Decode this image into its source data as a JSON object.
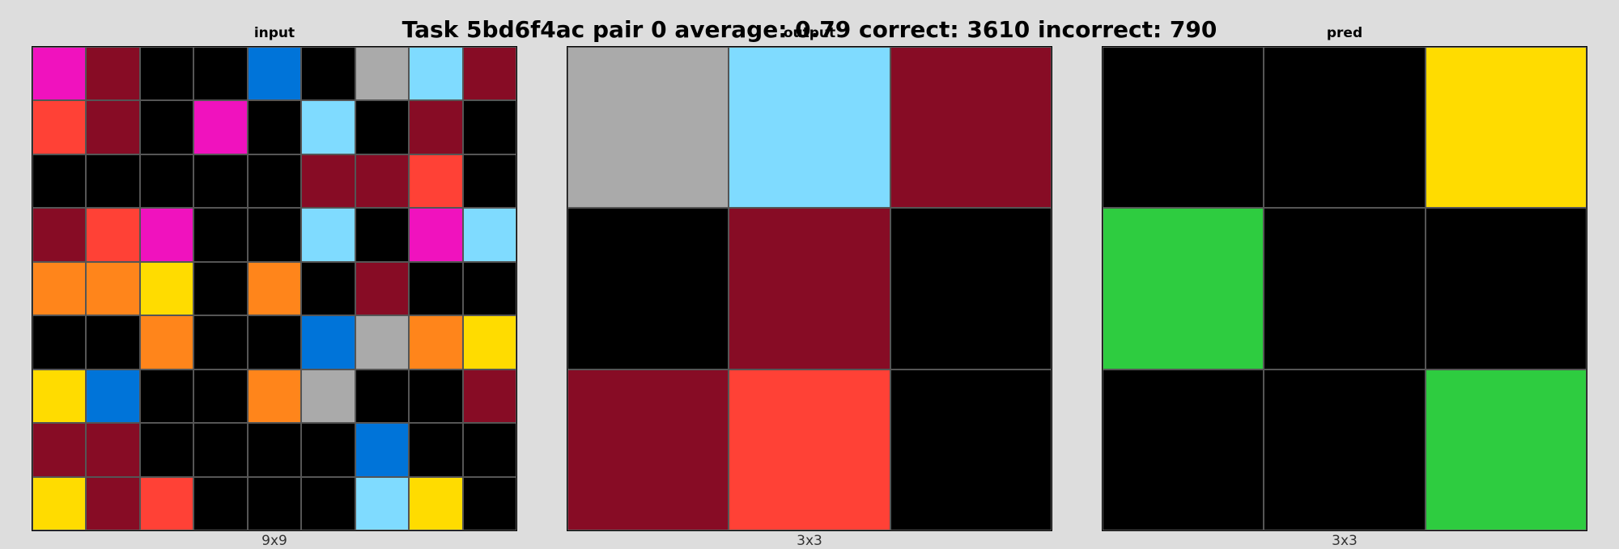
{
  "title": "Task 5bd6f4ac pair 0 average: 0.79 correct: 3610 incorrect: 790",
  "colors": {
    "0": "#000000",
    "1": "#0074d9",
    "2": "#ff4136",
    "3": "#2ecc40",
    "4": "#ffdc00",
    "5": "#aaaaaa",
    "6": "#f012be",
    "7": "#ff851b",
    "8": "#7fdbff",
    "9": "#870c25"
  },
  "panels": [
    {
      "label": "input",
      "size_label": "9x9",
      "rows": 9,
      "cols": 9,
      "grid": [
        [
          6,
          9,
          0,
          0,
          1,
          0,
          5,
          8,
          9
        ],
        [
          2,
          9,
          0,
          6,
          0,
          8,
          0,
          9,
          0
        ],
        [
          0,
          0,
          0,
          0,
          0,
          9,
          9,
          2,
          0
        ],
        [
          9,
          2,
          6,
          0,
          0,
          8,
          0,
          6,
          8
        ],
        [
          7,
          7,
          4,
          0,
          7,
          0,
          9,
          0,
          0
        ],
        [
          0,
          0,
          7,
          0,
          0,
          1,
          5,
          7,
          4
        ],
        [
          4,
          1,
          0,
          0,
          7,
          5,
          0,
          0,
          9
        ],
        [
          9,
          9,
          0,
          0,
          0,
          0,
          1,
          0,
          0
        ],
        [
          4,
          9,
          2,
          0,
          0,
          0,
          8,
          4,
          0
        ]
      ]
    },
    {
      "label": "output",
      "size_label": "3x3",
      "rows": 3,
      "cols": 3,
      "grid": [
        [
          5,
          8,
          9
        ],
        [
          0,
          9,
          0
        ],
        [
          9,
          2,
          0
        ]
      ]
    },
    {
      "label": "pred",
      "size_label": "3x3",
      "rows": 3,
      "cols": 3,
      "grid": [
        [
          0,
          0,
          4
        ],
        [
          3,
          0,
          0
        ],
        [
          0,
          0,
          3
        ]
      ]
    }
  ]
}
